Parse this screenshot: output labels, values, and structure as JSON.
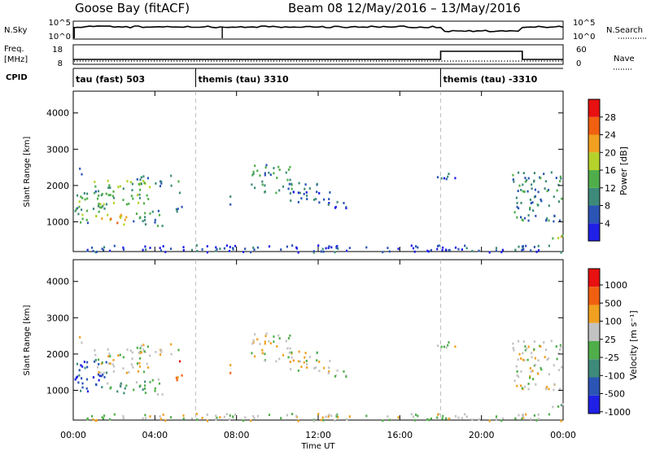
{
  "header": {
    "station": "Goose Bay (fitACF)",
    "beam_info": "Beam 08 12/May/2016 – 13/May/2016"
  },
  "strip_labels": {
    "nsky": "N.Sky",
    "nsearch": "N.Search",
    "freq_line1": "Freq.",
    "freq_line2": "[MHz]",
    "nave": "Nave",
    "cpid": "CPID",
    "nsky_top": "10^5",
    "nsky_bottom": "10^0",
    "nsearch_top": "10^5",
    "nsearch_bottom": "10^0",
    "freq_top": "18",
    "freq_bottom": "8",
    "nave_top": "60",
    "nave_bottom": "0"
  },
  "cpid_segments": [
    {
      "label": "tau (fast) 503",
      "start_h": 0
    },
    {
      "label": "themis (tau) 3310",
      "start_h": 6
    },
    {
      "label": "themis (tau) -3310",
      "start_h": 18
    }
  ],
  "time_axis": {
    "label": "Time UT",
    "ticks": [
      "00:00",
      "04:00",
      "08:00",
      "12:00",
      "16:00",
      "20:00",
      "00:00"
    ],
    "tick_hours": [
      0,
      4,
      8,
      12,
      16,
      20,
      24
    ]
  },
  "range_axis": {
    "label": "Slant Range [km]",
    "ticks": [
      "1000",
      "2000",
      "3000",
      "4000"
    ],
    "tick_values": [
      1000,
      2000,
      3000,
      4000
    ],
    "ylim": [
      180,
      4600
    ]
  },
  "power_colorbar": {
    "label": "Power [dB]",
    "ticks": [
      "4",
      "8",
      "12",
      "16",
      "20",
      "24",
      "28"
    ],
    "tick_values": [
      4,
      8,
      12,
      16,
      20,
      24,
      28
    ],
    "colors": [
      "#1f1fe6",
      "#2a55b5",
      "#3d8a7a",
      "#4fae4a",
      "#b4d22a",
      "#f0a020",
      "#f06010",
      "#e81010"
    ]
  },
  "velocity_colorbar": {
    "label": "Velocity [m s⁻¹]",
    "ticks": [
      "1000",
      "500",
      "100",
      "25",
      "-25",
      "-100",
      "-500",
      "-1000"
    ],
    "colors": [
      "#1f1fe6",
      "#2a55b5",
      "#3d8a7a",
      "#4fae4a",
      "#c2c2c2",
      "#f0a020",
      "#f06010",
      "#e81010"
    ]
  },
  "chart_data": {
    "type": "heatmap",
    "x_unit": "hours UT",
    "y_unit": "km",
    "xlim": [
      0,
      24
    ],
    "ylim": [
      180,
      4600
    ],
    "boundaries_h": [
      6,
      18
    ],
    "strip_series": {
      "freq_steps": [
        {
          "x0": 0,
          "x1": 18,
          "value": "low"
        },
        {
          "x0": 18,
          "x1": 22,
          "value": "high"
        },
        {
          "x0": 22,
          "x1": 24,
          "value": "low"
        }
      ]
    },
    "echo_regions": [
      {
        "x0": 0.0,
        "x1": 1.6,
        "y0": 950,
        "y1": 1900,
        "p": 12,
        "v": 1
      },
      {
        "x0": 1.3,
        "x1": 2.7,
        "y0": 850,
        "y1": 1250,
        "p": 21,
        "v": 3
      },
      {
        "x0": 0.9,
        "x1": 3.8,
        "y0": 1500,
        "y1": 2200,
        "p": 14,
        "v": 4
      },
      {
        "x0": 2.9,
        "x1": 4.4,
        "y0": 850,
        "y1": 1350,
        "p": 10,
        "v": 3
      },
      {
        "x0": 3.0,
        "x1": 5.2,
        "y0": 2000,
        "y1": 2300,
        "p": 11,
        "v": 4
      },
      {
        "x0": 0.1,
        "x1": 0.5,
        "y0": 2300,
        "y1": 2500,
        "p": 8,
        "v": 4
      },
      {
        "x0": 5.0,
        "x1": 5.4,
        "y0": 1300,
        "y1": 1900,
        "p": 9,
        "v": 6
      },
      {
        "x0": 7.6,
        "x1": 7.8,
        "y0": 1400,
        "y1": 1800,
        "p": 11,
        "v": 6
      },
      {
        "x0": 8.7,
        "x1": 10.8,
        "y0": 1800,
        "y1": 2600,
        "p": 11,
        "v": 4
      },
      {
        "x0": 10.5,
        "x1": 12.6,
        "y0": 1500,
        "y1": 2100,
        "p": 7,
        "v": 4
      },
      {
        "x0": 12.5,
        "x1": 13.4,
        "y0": 1300,
        "y1": 1600,
        "p": 6,
        "v": 4
      },
      {
        "x0": 17.8,
        "x1": 18.8,
        "y0": 2200,
        "y1": 2500,
        "p": 6,
        "v": 4
      },
      {
        "x0": 21.5,
        "x1": 23.9,
        "y0": 1000,
        "y1": 2400,
        "p": 10,
        "v": 4
      },
      {
        "x0": 23.3,
        "x1": 24.0,
        "y0": 550,
        "y1": 800,
        "p": 20,
        "v": 3
      },
      {
        "x0": 0.0,
        "x1": 24.0,
        "y0": 180,
        "y1": 380,
        "p": 5,
        "v": 4
      }
    ]
  }
}
